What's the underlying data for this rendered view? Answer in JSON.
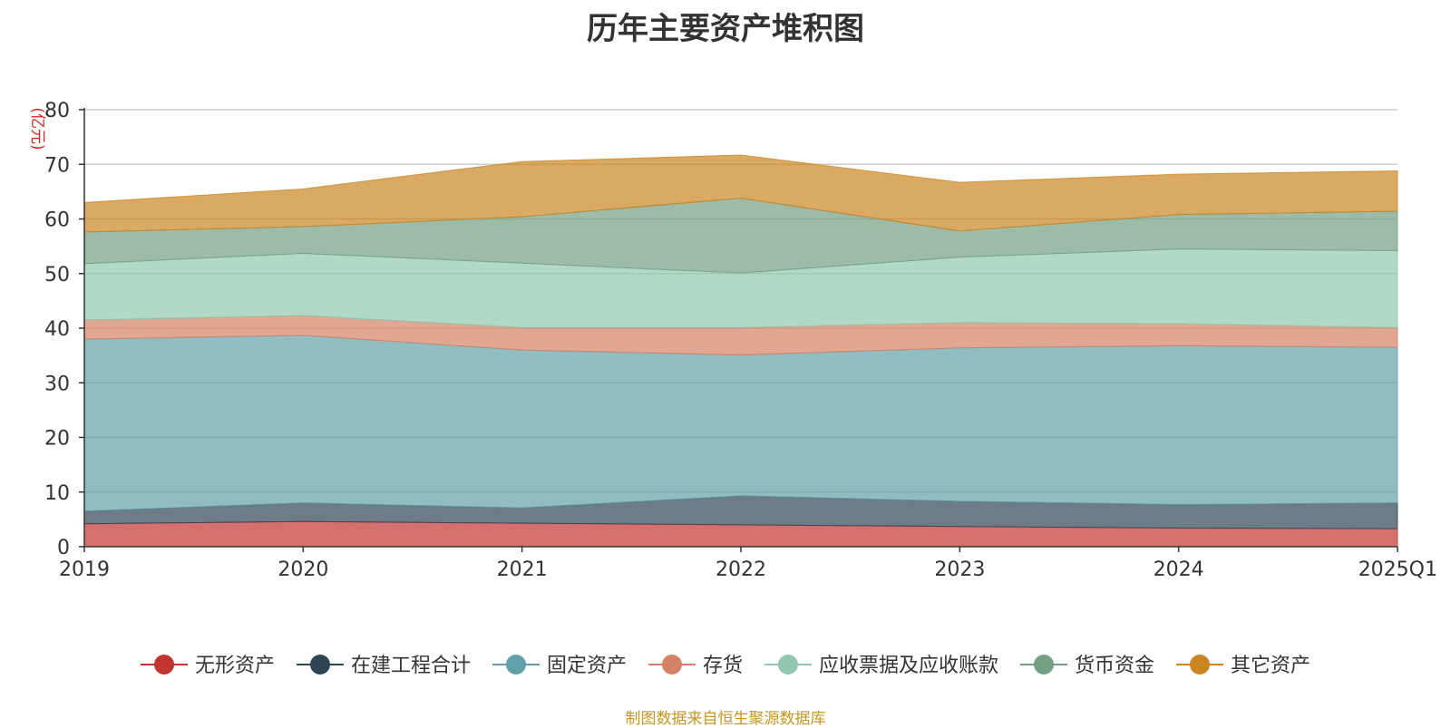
{
  "chart_data": {
    "type": "area",
    "stacked": true,
    "title": "历年主要资产堆积图",
    "yunit": "(亿元)",
    "x": [
      "2019",
      "2020",
      "2021",
      "2022",
      "2023",
      "2024",
      "2025Q1"
    ],
    "ylim": [
      0,
      80
    ],
    "yticks": [
      0,
      10,
      20,
      30,
      40,
      50,
      60,
      70,
      80
    ],
    "grid": true,
    "legend_position": "bottom",
    "series": [
      {
        "name": "无形资产",
        "color": "#c23531",
        "values": [
          4.2,
          4.6,
          4.3,
          4.0,
          3.7,
          3.4,
          3.3
        ]
      },
      {
        "name": "在建工程合计",
        "color": "#2f4554",
        "values": [
          2.3,
          3.4,
          2.8,
          5.3,
          4.6,
          4.3,
          4.7
        ]
      },
      {
        "name": "固定资产",
        "color": "#61a0a8",
        "values": [
          31.5,
          30.7,
          28.9,
          25.8,
          28.1,
          29.1,
          28.5
        ]
      },
      {
        "name": "存货",
        "color": "#d48265",
        "values": [
          3.5,
          3.6,
          4.1,
          5.0,
          4.6,
          4.0,
          3.6
        ]
      },
      {
        "name": "应收票据及应收账款",
        "color": "#91c7ae",
        "values": [
          10.3,
          11.4,
          11.8,
          10.0,
          12.0,
          13.7,
          14.1
        ]
      },
      {
        "name": "货币资金",
        "color": "#749f83",
        "values": [
          5.8,
          4.9,
          8.5,
          13.7,
          4.8,
          6.3,
          7.2
        ]
      },
      {
        "name": "其它资产",
        "color": "#ca8622",
        "values": [
          5.4,
          6.9,
          10.1,
          7.9,
          8.9,
          7.4,
          7.4
        ]
      }
    ]
  },
  "source": "制图数据来自恒生聚源数据库"
}
